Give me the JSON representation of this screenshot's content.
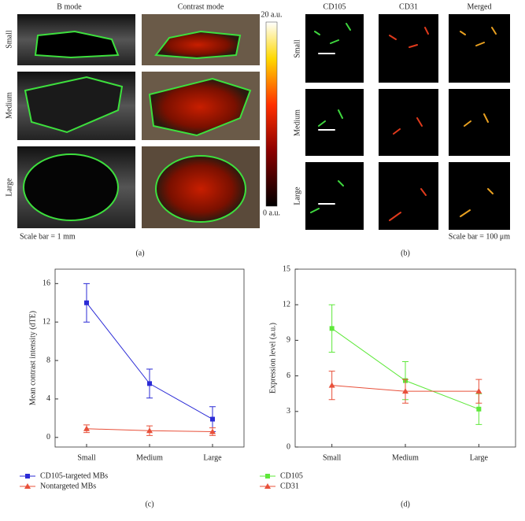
{
  "figure": {
    "a": {
      "columns": [
        "B mode",
        "Contrast mode"
      ],
      "rows": [
        "Small",
        "Medium",
        "Large"
      ],
      "colorbar_max": "20 a.u.",
      "colorbar_min": "0 a.u.",
      "scale": "Scale bar = 1 mm",
      "caption": "(a)"
    },
    "b": {
      "columns": [
        "CD105",
        "CD31",
        "Merged"
      ],
      "rows": [
        "Small",
        "Medium",
        "Large"
      ],
      "scale": "Scale bar = 100 μm",
      "caption": "(b)"
    }
  },
  "chart_data": [
    {
      "type": "line",
      "caption": "(c)",
      "y_label": "Mean contrast intensity (dTE)",
      "categories": [
        "Small",
        "Medium",
        "Large"
      ],
      "series": [
        {
          "name": "CD105-targeted MBs",
          "color": "#2b2bd6",
          "marker": "square",
          "values": [
            14,
            5.6,
            1.9
          ],
          "errors": [
            2,
            1.5,
            1.3
          ]
        },
        {
          "name": "Nontargeted MBs",
          "color": "#e8503a",
          "marker": "triangle",
          "values": [
            0.9,
            0.7,
            0.6
          ],
          "errors": [
            0.4,
            0.5,
            0.4
          ]
        }
      ],
      "ylim": [
        -1,
        17.5
      ],
      "yticks": [
        0,
        4,
        8,
        12,
        16
      ],
      "legend": "bottom"
    },
    {
      "type": "line",
      "caption": "(d)",
      "y_label": "Expression level (a.u.)",
      "categories": [
        "Small",
        "Medium",
        "Large"
      ],
      "series": [
        {
          "name": "CD105",
          "color": "#5ee83a",
          "marker": "square",
          "values": [
            10,
            5.6,
            3.2
          ],
          "errors": [
            2,
            1.6,
            1.3
          ]
        },
        {
          "name": "CD31",
          "color": "#e8503a",
          "marker": "triangle",
          "values": [
            5.2,
            4.7,
            4.7
          ],
          "errors": [
            1.2,
            1,
            1
          ]
        }
      ],
      "ylim": [
        0,
        15
      ],
      "yticks": [
        0,
        3,
        6,
        9,
        12,
        15
      ],
      "legend": "bottom"
    }
  ]
}
